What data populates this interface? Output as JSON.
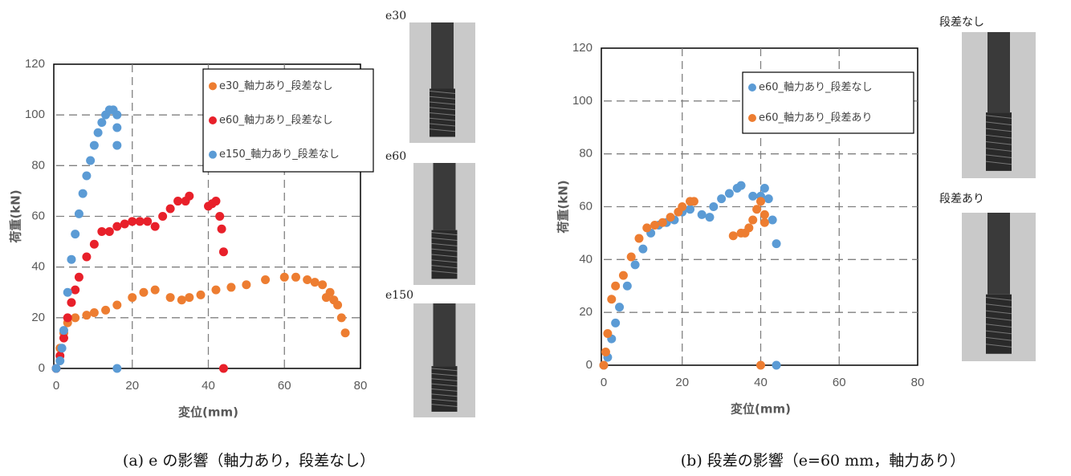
{
  "chart_data": [
    {
      "type": "scatter",
      "x_label": "変位(mm)",
      "y_label": "荷重(kN)",
      "xlim": [
        0,
        80
      ],
      "ylim": [
        0,
        120
      ],
      "xticks": [
        0,
        20,
        40,
        60,
        80
      ],
      "yticks": [
        0,
        20,
        40,
        60,
        80,
        100,
        120
      ],
      "grid": true,
      "legend": "upper right",
      "series": [
        {
          "name": "e30_軸力あり_段差なし",
          "color": "#ed7d31",
          "x": [
            0,
            1,
            2,
            3,
            5,
            8,
            10,
            13,
            16,
            20,
            23,
            26,
            30,
            33,
            35,
            38,
            42,
            46,
            50,
            55,
            60,
            63,
            66,
            68,
            70,
            71,
            72,
            73,
            74,
            75,
            76
          ],
          "values": [
            0,
            8,
            14,
            18,
            20,
            21,
            22,
            23,
            25,
            28,
            30,
            31,
            28,
            27,
            28,
            29,
            31,
            32,
            33,
            35,
            36,
            36,
            35,
            34,
            33,
            28,
            30,
            27,
            25,
            20,
            14
          ]
        },
        {
          "name": "e60_軸力あり_段差なし",
          "color": "#e8202a",
          "x": [
            0,
            1,
            2,
            3,
            4,
            5,
            6,
            8,
            10,
            12,
            14,
            16,
            18,
            20,
            22,
            24,
            26,
            28,
            30,
            32,
            34,
            35,
            40,
            41,
            42,
            43,
            43.5,
            44,
            44
          ],
          "values": [
            0,
            5,
            12,
            20,
            26,
            31,
            36,
            44,
            49,
            54,
            54,
            56,
            57,
            58,
            58,
            58,
            56,
            60,
            63,
            66,
            66,
            68,
            64,
            65,
            66,
            60,
            55,
            46,
            0
          ]
        },
        {
          "name": "e150_軸力あり_段差なし",
          "color": "#5b9bd5",
          "x": [
            0,
            1,
            1.5,
            2,
            3,
            4,
            5,
            6,
            7,
            8,
            9,
            10,
            11,
            12,
            13,
            14,
            15,
            16,
            16,
            16,
            16
          ],
          "values": [
            0,
            3,
            8,
            15,
            30,
            43,
            53,
            61,
            69,
            76,
            82,
            88,
            93,
            97,
            100,
            102,
            102,
            100,
            95,
            88,
            0
          ]
        }
      ]
    },
    {
      "type": "scatter",
      "x_label": "変位(mm)",
      "y_label": "荷重(kN)",
      "xlim": [
        0,
        80
      ],
      "ylim": [
        0,
        120
      ],
      "xticks": [
        0,
        20,
        40,
        60,
        80
      ],
      "yticks": [
        0,
        20,
        40,
        60,
        80,
        100,
        120
      ],
      "grid": true,
      "legend": "upper right",
      "series": [
        {
          "name": "e60_軸力あり_段差なし",
          "color": "#5b9bd5",
          "x": [
            0,
            1,
            2,
            3,
            4,
            6,
            8,
            10,
            12,
            14,
            16,
            18,
            20,
            22,
            25,
            27,
            28,
            30,
            32,
            34,
            35,
            38,
            40,
            41,
            42,
            43,
            44,
            44
          ],
          "values": [
            0,
            3,
            10,
            16,
            22,
            30,
            38,
            44,
            50,
            53,
            54,
            55,
            58,
            59,
            57,
            56,
            60,
            63,
            65,
            67,
            68,
            64,
            64,
            67,
            63,
            55,
            46,
            0
          ]
        },
        {
          "name": "e60_軸力あり_段差あり",
          "color": "#ed7d31",
          "x": [
            0,
            0.5,
            1,
            2,
            3,
            5,
            7,
            9,
            11,
            13,
            15,
            17,
            19,
            20,
            22,
            23,
            33,
            35,
            36,
            37,
            38,
            39,
            40,
            41,
            41,
            40
          ],
          "values": [
            0,
            5,
            12,
            25,
            30,
            34,
            41,
            48,
            52,
            53,
            54,
            56,
            58,
            60,
            62,
            62,
            49,
            50,
            50,
            52,
            55,
            59,
            62,
            57,
            54,
            0
          ]
        }
      ]
    }
  ],
  "photos": [
    {
      "label": "e30"
    },
    {
      "label": "e60"
    },
    {
      "label": "e150"
    },
    {
      "label": "段差なし"
    },
    {
      "label": "段差あり"
    }
  ],
  "captions": [
    "(a) e の影響（軸力あり，段差なし）",
    "(b) 段差の影響（e=60 mm，軸力あり）"
  ]
}
